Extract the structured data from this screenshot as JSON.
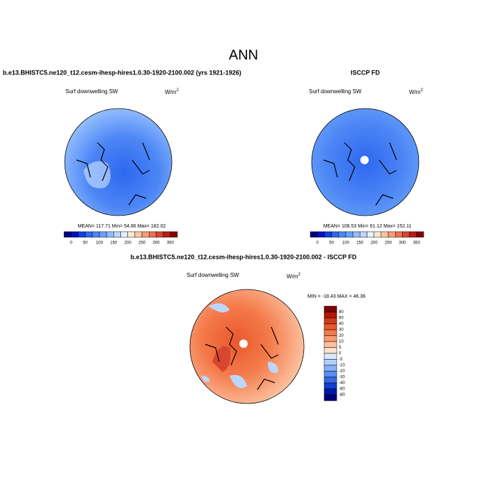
{
  "title": "ANN",
  "panels": [
    {
      "title": "b.e13.BHISTC5.ne120_t12.cesm-ihesp-hires1.0.30-1920-2100.002 (yrs 1921-1926)",
      "variable": "Surf downwelling SW",
      "units": "W/m",
      "units_exp": "2",
      "stats": "MEAN= 117.71  Min=  54.86  Max= 182.02"
    },
    {
      "title": "ISCCP FD",
      "variable": "Surf downwelling SW",
      "units": "W/m",
      "units_exp": "2",
      "stats": "MEAN= 108.53  Min=  61.12  Max= 152.11"
    }
  ],
  "colorbar": {
    "labels": [
      "0",
      "50",
      "100",
      "150",
      "200",
      "250",
      "300",
      "350"
    ],
    "colors": [
      "#00007f",
      "#0010c0",
      "#1040e0",
      "#2e68f0",
      "#4c86f5",
      "#6aa2fa",
      "#92bcff",
      "#bcd6ff",
      "#e6f0ff",
      "#ffe8d2",
      "#ffc6a2",
      "#fa9c74",
      "#ee7050",
      "#d84630",
      "#b81e14",
      "#880000"
    ]
  },
  "difference": {
    "title": "b.e13.BHISTC5.ne120_t12.cesm-ihesp-hires1.0.30-1920-2100.002 - ISCCP FD",
    "variable": "Surf downwelling SW",
    "units": "W/m",
    "units_exp": "2",
    "stats": "MIN = -18.43 MAX =  46.36",
    "colorbar": {
      "labels": [
        "80",
        "60",
        "40",
        "30",
        "20",
        "10",
        "5",
        "0",
        "-5",
        "-10",
        "-20",
        "-30",
        "-40",
        "-60",
        "-80"
      ],
      "colors": [
        "#800000",
        "#b01808",
        "#d03a1a",
        "#e8582e",
        "#f47a4a",
        "#f89c70",
        "#fcc09e",
        "#ffe2cc",
        "#dceaff",
        "#b4d0ff",
        "#86b0fa",
        "#5a8ef2",
        "#3468e6",
        "#1440d0",
        "#0018a8",
        "#00007a"
      ]
    }
  }
}
